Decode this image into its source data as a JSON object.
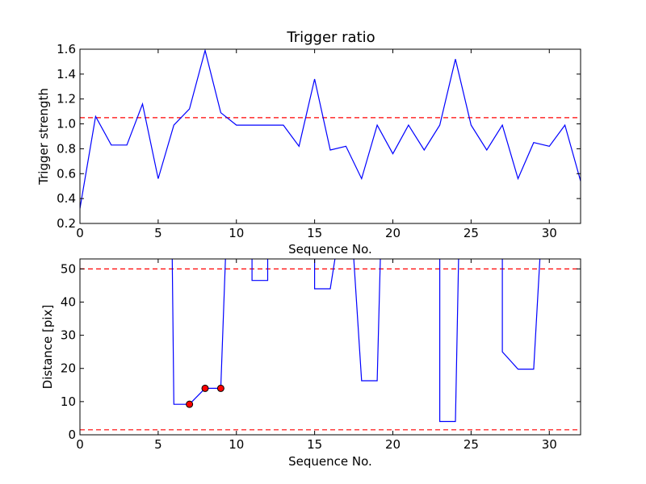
{
  "chart_data": [
    {
      "type": "line",
      "title": "Trigger ratio",
      "xlabel": "Sequence No.",
      "ylabel": "Trigger strength",
      "xlim": [
        0,
        32
      ],
      "ylim": [
        0.2,
        1.6
      ],
      "xticks": [
        0,
        5,
        10,
        15,
        20,
        25,
        30
      ],
      "yticks": [
        0.2,
        0.4,
        0.6,
        0.8,
        1.0,
        1.2,
        1.4,
        1.6
      ],
      "ytick_labels": [
        "0.2",
        "0.4",
        "0.6",
        "0.8",
        "1.0",
        "1.2",
        "1.4",
        "1.6"
      ],
      "grid": false,
      "series": [
        {
          "color": "#0000ff",
          "style": "solid",
          "x": [
            0,
            1,
            2,
            3,
            4,
            5,
            6,
            7,
            8,
            9,
            10,
            11,
            12,
            13,
            14,
            15,
            16,
            17,
            18,
            19,
            20,
            21,
            22,
            23,
            24,
            25,
            26,
            27,
            28,
            29,
            30,
            31,
            32
          ],
          "y": [
            0.32,
            1.06,
            0.83,
            0.83,
            1.16,
            0.56,
            0.99,
            1.12,
            1.59,
            1.09,
            0.99,
            0.99,
            0.99,
            0.99,
            0.82,
            1.36,
            0.79,
            0.82,
            0.56,
            0.99,
            0.76,
            0.99,
            0.79,
            0.99,
            1.52,
            0.99,
            0.79,
            0.99,
            0.56,
            0.85,
            0.82,
            0.99,
            0.54
          ]
        }
      ],
      "hlines": [
        {
          "y": 1.05,
          "color": "#ff0000",
          "style": "dashed"
        }
      ]
    },
    {
      "type": "line",
      "title": "",
      "xlabel": "Sequence No.",
      "ylabel": "Distance [pix]",
      "xlim": [
        0,
        32
      ],
      "ylim": [
        0,
        53
      ],
      "xticks": [
        0,
        5,
        10,
        15,
        20,
        25,
        30
      ],
      "yticks": [
        0,
        10,
        20,
        30,
        40,
        50
      ],
      "ytick_labels": [
        "0",
        "10",
        "20",
        "30",
        "40",
        "50"
      ],
      "grid": false,
      "series": [
        {
          "color": "#0000ff",
          "style": "solid",
          "segments": [
            {
              "x": [
                5.9,
                6,
                7,
                8,
                9,
                9.3
              ],
              "y": [
                53,
                9.2,
                9.2,
                14,
                14,
                53
              ]
            },
            {
              "x": [
                11,
                11,
                12,
                12
              ],
              "y": [
                53,
                46.5,
                46.5,
                53
              ]
            },
            {
              "x": [
                15,
                15,
                16,
                16.3
              ],
              "y": [
                53,
                44,
                44,
                53
              ]
            },
            {
              "x": [
                17.5,
                18,
                19,
                19.2
              ],
              "y": [
                53,
                16.3,
                16.3,
                53
              ]
            },
            {
              "x": [
                23,
                23,
                24,
                24.2
              ],
              "y": [
                53,
                4,
                4,
                53
              ]
            },
            {
              "x": [
                27,
                27,
                28,
                29,
                29.4
              ],
              "y": [
                53,
                25,
                19.8,
                19.8,
                53
              ]
            }
          ]
        }
      ],
      "markers": {
        "color": "#ff0000",
        "x": [
          7,
          8,
          9
        ],
        "y": [
          9.2,
          14,
          14
        ]
      },
      "hlines": [
        {
          "y": 50,
          "color": "#ff0000",
          "style": "dashed"
        },
        {
          "y": 1.5,
          "color": "#ff0000",
          "style": "dashed"
        }
      ]
    }
  ]
}
